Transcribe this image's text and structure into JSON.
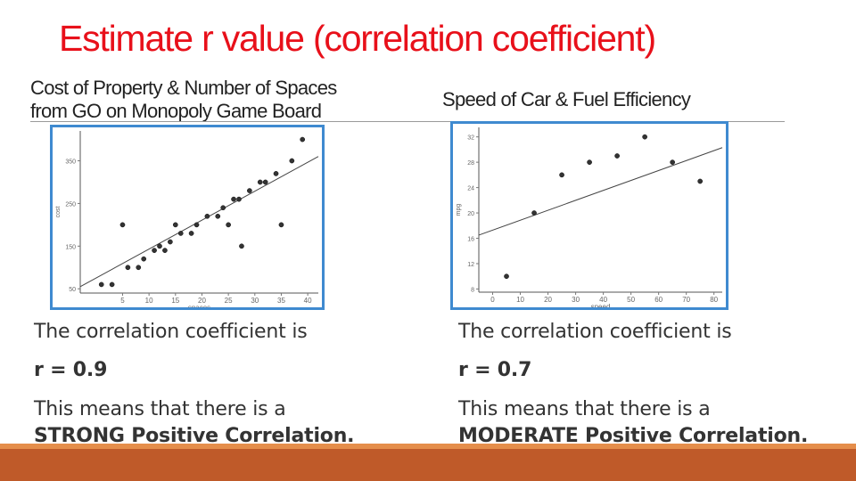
{
  "slide": {
    "title": "Estimate r value (correlation coefficient)",
    "left": {
      "subtitle_line1": "Cost of Property & Number of Spaces",
      "subtitle_line2": "from GO on Monopoly Game Board",
      "stmt": "The correlation coefficient is",
      "r": "r = 0.9",
      "means": "This means that there is a",
      "conclusion": "STRONG Positive Correlation."
    },
    "right": {
      "subtitle": "Speed of Car & Fuel Efficiency",
      "stmt": "The correlation coefficient is",
      "r": "r = 0.7",
      "means": "This means that there is a",
      "conclusion": "MODERATE Positive Correlation."
    }
  },
  "colors": {
    "title": "#e8101a",
    "frame": "#3f8ad0",
    "footer": "#bf5a29",
    "footer_accent": "#e58e4b"
  },
  "chart_data": [
    {
      "type": "scatter",
      "xlabel": "spaces",
      "ylabel": "cost",
      "x_ticks": [
        "5",
        "10",
        "15",
        "20",
        "25",
        "30",
        "35",
        "40"
      ],
      "y_ticks": [
        "50",
        "150",
        "250",
        "350"
      ],
      "xlim": [
        -3,
        42
      ],
      "ylim": [
        40,
        420
      ],
      "points": [
        {
          "x": 1,
          "y": 60
        },
        {
          "x": 3,
          "y": 60
        },
        {
          "x": 5,
          "y": 200
        },
        {
          "x": 6,
          "y": 100
        },
        {
          "x": 8,
          "y": 100
        },
        {
          "x": 9,
          "y": 120
        },
        {
          "x": 11,
          "y": 140
        },
        {
          "x": 12,
          "y": 150
        },
        {
          "x": 13,
          "y": 140
        },
        {
          "x": 14,
          "y": 160
        },
        {
          "x": 15,
          "y": 200
        },
        {
          "x": 16,
          "y": 180
        },
        {
          "x": 18,
          "y": 180
        },
        {
          "x": 19,
          "y": 200
        },
        {
          "x": 21,
          "y": 220
        },
        {
          "x": 23,
          "y": 220
        },
        {
          "x": 24,
          "y": 240
        },
        {
          "x": 25,
          "y": 200
        },
        {
          "x": 26,
          "y": 260
        },
        {
          "x": 27,
          "y": 260
        },
        {
          "x": 27.5,
          "y": 150
        },
        {
          "x": 29,
          "y": 280
        },
        {
          "x": 31,
          "y": 300
        },
        {
          "x": 32,
          "y": 300
        },
        {
          "x": 34,
          "y": 320
        },
        {
          "x": 35,
          "y": 200
        },
        {
          "x": 37,
          "y": 350
        },
        {
          "x": 39,
          "y": 400
        }
      ],
      "trendline": [
        {
          "x": -3,
          "y": 55
        },
        {
          "x": 42,
          "y": 360
        }
      ]
    },
    {
      "type": "scatter",
      "xlabel": "speed",
      "ylabel": "mpg",
      "x_ticks": [
        "0",
        "10",
        "20",
        "30",
        "40",
        "50",
        "60",
        "70",
        "80"
      ],
      "y_ticks": [
        "8",
        "12",
        "16",
        "20",
        "24",
        "28",
        "32"
      ],
      "xlim": [
        -5,
        83
      ],
      "ylim": [
        7.5,
        33.5
      ],
      "points": [
        {
          "x": 5,
          "y": 10
        },
        {
          "x": 15,
          "y": 20
        },
        {
          "x": 25,
          "y": 26
        },
        {
          "x": 35,
          "y": 28
        },
        {
          "x": 45,
          "y": 29
        },
        {
          "x": 55,
          "y": 32
        },
        {
          "x": 65,
          "y": 28
        },
        {
          "x": 75,
          "y": 25
        }
      ],
      "trendline": [
        {
          "x": -5,
          "y": 16.5
        },
        {
          "x": 83,
          "y": 30.3
        }
      ]
    }
  ]
}
